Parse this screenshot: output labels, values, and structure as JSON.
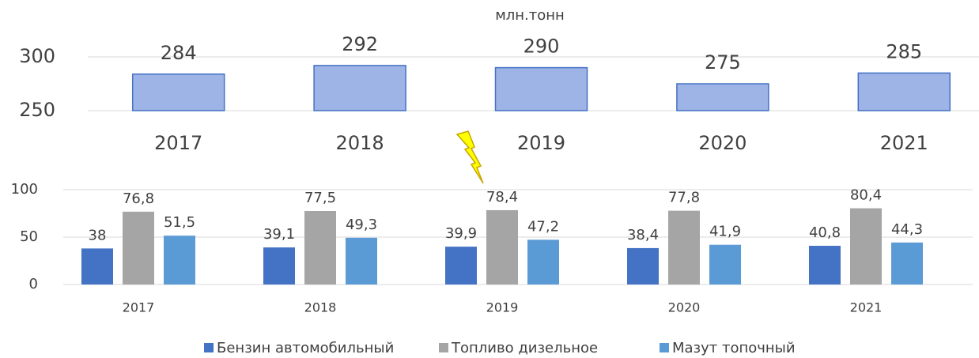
{
  "chart_data": [
    {
      "type": "bar",
      "subtitle": "млн.тонн",
      "categories": [
        "2017",
        "2018",
        "2019",
        "2020",
        "2021"
      ],
      "values": [
        284,
        292,
        290,
        275,
        285
      ],
      "color": "#9eb3e6",
      "ylim": [
        250,
        300
      ],
      "yticks": [
        250,
        300
      ],
      "grid": true
    },
    {
      "type": "grouped-bar",
      "categories": [
        "2017",
        "2018",
        "2019",
        "2020",
        "2021"
      ],
      "series": [
        {
          "name": "Бензин автомобильный",
          "color": "#4472c4",
          "values": [
            38,
            39.1,
            39.9,
            38.4,
            40.8
          ],
          "value_labels": [
            "38",
            "39,1",
            "39,9",
            "38,4",
            "40,8"
          ]
        },
        {
          "name": "Топливо дизельное",
          "color": "#a5a5a5",
          "values": [
            76.8,
            77.5,
            78.4,
            77.8,
            80.4
          ],
          "value_labels": [
            "76,8",
            "77,5",
            "78,4",
            "77,8",
            "80,4"
          ]
        },
        {
          "name": "Мазут топочный",
          "color": "#5b9bd5",
          "values": [
            51.5,
            49.3,
            47.2,
            41.9,
            44.3
          ],
          "value_labels": [
            "51,5",
            "49,3",
            "47,2",
            "41,9",
            "44,3"
          ]
        }
      ],
      "ylim": [
        0,
        100
      ],
      "yticks": [
        0,
        50,
        100
      ],
      "grid": true,
      "legend": "bottom"
    }
  ]
}
